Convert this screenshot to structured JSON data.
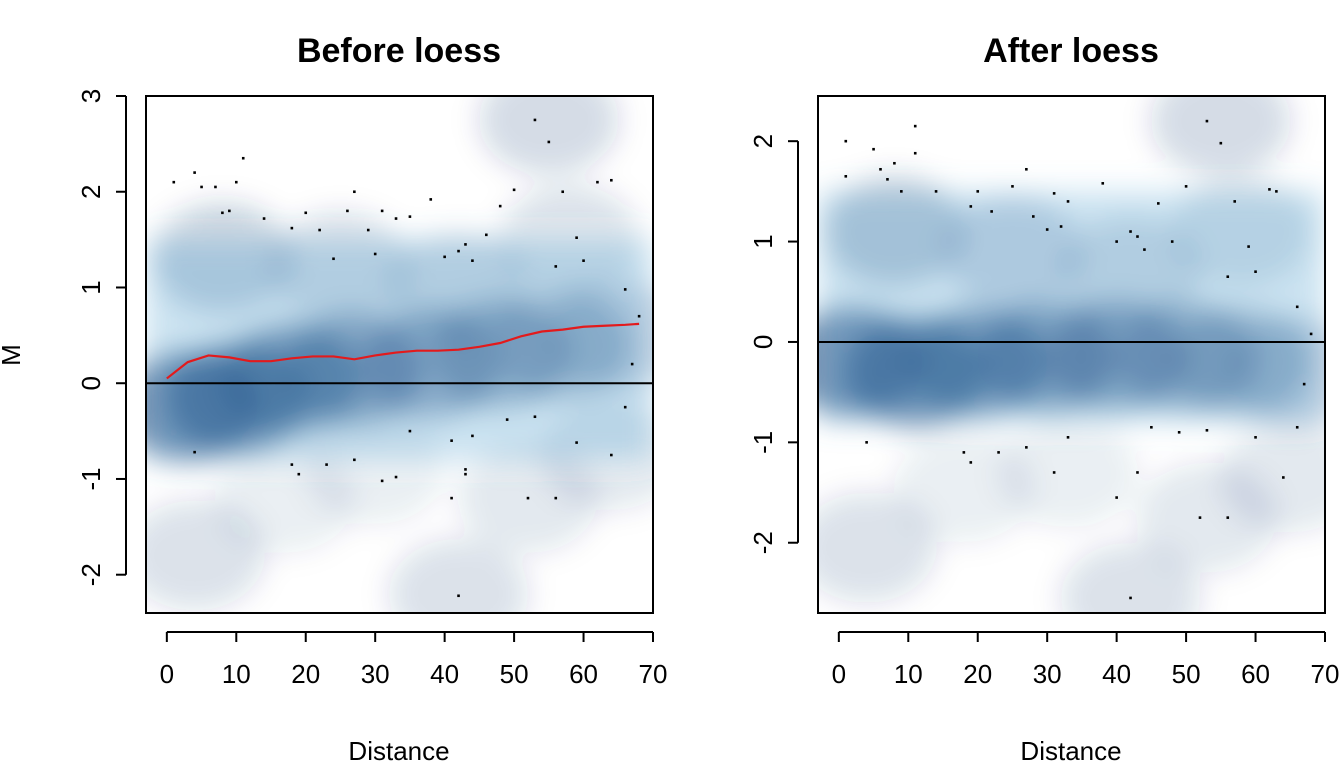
{
  "chart_data": [
    {
      "type": "scatter",
      "style": "smoothScatter density",
      "title": "Before loess",
      "xlabel": "Distance",
      "ylabel": "M",
      "xlim": [
        -3,
        70
      ],
      "ylim": [
        -2.4,
        3
      ],
      "xticks": [
        "0",
        "10",
        "20",
        "30",
        "40",
        "50",
        "60",
        "70"
      ],
      "yticks": [
        "-2",
        "-1",
        "0",
        "1",
        "2",
        "3"
      ],
      "hline": 0,
      "colors": {
        "density": "#08306b",
        "loess_curve": "#e31a1c",
        "reference_line": "#000000"
      },
      "loess_curve": {
        "x": [
          0,
          3,
          6,
          9,
          12,
          15,
          18,
          21,
          24,
          27,
          30,
          33,
          36,
          39,
          42,
          45,
          48,
          51,
          54,
          57,
          60,
          63,
          66,
          68
        ],
        "y": [
          0.05,
          0.22,
          0.29,
          0.27,
          0.23,
          0.23,
          0.26,
          0.28,
          0.28,
          0.25,
          0.29,
          0.32,
          0.34,
          0.34,
          0.35,
          0.38,
          0.42,
          0.49,
          0.54,
          0.56,
          0.59,
          0.6,
          0.61,
          0.62
        ]
      },
      "density_regions": [
        {
          "x": 3,
          "y": -0.25,
          "weight": 1.0
        },
        {
          "x": 10,
          "y": -0.15,
          "weight": 1.0
        },
        {
          "x": 18,
          "y": 0.05,
          "weight": 0.9
        },
        {
          "x": 27,
          "y": 0.15,
          "weight": 0.8
        },
        {
          "x": 38,
          "y": 0.2,
          "weight": 0.7
        },
        {
          "x": 48,
          "y": 0.3,
          "weight": 0.6
        },
        {
          "x": 57,
          "y": 0.4,
          "weight": 0.5
        },
        {
          "x": 65,
          "y": 0.5,
          "weight": 0.35
        },
        {
          "x": 8,
          "y": 1.3,
          "weight": 0.4
        },
        {
          "x": 25,
          "y": 1.2,
          "weight": 0.3
        },
        {
          "x": 42,
          "y": 1.0,
          "weight": 0.3
        },
        {
          "x": 58,
          "y": 1.5,
          "weight": 0.25
        },
        {
          "x": 55,
          "y": 2.75,
          "weight": 0.3
        },
        {
          "x": 4,
          "y": -1.8,
          "weight": 0.25
        },
        {
          "x": 42,
          "y": -2.2,
          "weight": 0.25
        },
        {
          "x": 52,
          "y": -1.2,
          "weight": 0.2
        },
        {
          "x": 17,
          "y": -1.2,
          "weight": 0.15
        },
        {
          "x": 30,
          "y": -0.9,
          "weight": 0.15
        },
        {
          "x": 64,
          "y": -0.75,
          "weight": 0.2
        }
      ],
      "outliers": {
        "x": [
          1,
          4,
          5,
          7,
          8,
          9,
          10,
          11,
          14,
          18,
          20,
          22,
          24,
          26,
          27,
          29,
          30,
          31,
          33,
          35,
          38,
          40,
          42,
          43,
          44,
          46,
          48,
          50,
          53,
          55,
          57,
          59,
          60,
          62,
          64,
          66,
          68,
          56,
          41,
          43,
          44,
          49,
          53,
          4,
          42,
          18,
          19,
          23,
          27,
          31,
          33,
          35,
          41,
          43,
          52,
          56,
          59,
          64,
          66,
          67
        ],
        "y": [
          2.1,
          2.2,
          2.05,
          2.05,
          1.78,
          1.8,
          2.1,
          2.35,
          1.72,
          1.62,
          1.78,
          1.6,
          1.3,
          1.8,
          2.0,
          1.6,
          1.35,
          1.8,
          1.72,
          1.74,
          1.92,
          1.32,
          1.38,
          1.45,
          1.28,
          1.55,
          1.85,
          2.02,
          2.75,
          2.52,
          2.0,
          1.52,
          1.28,
          2.1,
          2.12,
          0.98,
          0.7,
          1.22,
          -0.6,
          -0.9,
          -0.55,
          -0.38,
          -0.35,
          -0.72,
          -2.22,
          -0.85,
          -0.95,
          -0.85,
          -0.8,
          -1.02,
          -0.98,
          -0.5,
          -1.2,
          -0.95,
          -1.2,
          -1.2,
          -0.62,
          -0.75,
          -0.25,
          0.2
        ]
      }
    },
    {
      "type": "scatter",
      "style": "smoothScatter density",
      "title": "After loess",
      "xlabel": "Distance",
      "ylabel": "",
      "xlim": [
        -3,
        70
      ],
      "ylim": [
        -2.7,
        2.45
      ],
      "xticks": [
        "0",
        "10",
        "20",
        "30",
        "40",
        "50",
        "60",
        "70"
      ],
      "yticks": [
        "-2",
        "-1",
        "0",
        "1",
        "2"
      ],
      "hline": 0,
      "colors": {
        "density": "#08306b",
        "reference_line": "#000000"
      },
      "density_regions": [
        {
          "x": 2,
          "y": -0.2,
          "weight": 1.0
        },
        {
          "x": 11,
          "y": -0.3,
          "weight": 1.0
        },
        {
          "x": 20,
          "y": -0.2,
          "weight": 0.9
        },
        {
          "x": 30,
          "y": -0.15,
          "weight": 0.85
        },
        {
          "x": 40,
          "y": -0.15,
          "weight": 0.75
        },
        {
          "x": 50,
          "y": -0.15,
          "weight": 0.65
        },
        {
          "x": 58,
          "y": -0.2,
          "weight": 0.5
        },
        {
          "x": 66,
          "y": -0.3,
          "weight": 0.35
        },
        {
          "x": 8,
          "y": 1.1,
          "weight": 0.45
        },
        {
          "x": 25,
          "y": 0.9,
          "weight": 0.35
        },
        {
          "x": 42,
          "y": 0.7,
          "weight": 0.3
        },
        {
          "x": 58,
          "y": 1.1,
          "weight": 0.25
        },
        {
          "x": 55,
          "y": 2.2,
          "weight": 0.3
        },
        {
          "x": 4,
          "y": -2.05,
          "weight": 0.25
        },
        {
          "x": 42,
          "y": -2.55,
          "weight": 0.25
        },
        {
          "x": 53,
          "y": -1.75,
          "weight": 0.2
        },
        {
          "x": 18,
          "y": -1.45,
          "weight": 0.15
        },
        {
          "x": 33,
          "y": -1.3,
          "weight": 0.15
        },
        {
          "x": 65,
          "y": -1.35,
          "weight": 0.2
        }
      ],
      "outliers": {
        "x": [
          1,
          1,
          5,
          6,
          7,
          8,
          9,
          11,
          11,
          14,
          19,
          20,
          22,
          25,
          27,
          28,
          30,
          31,
          32,
          33,
          38,
          40,
          42,
          43,
          44,
          46,
          48,
          50,
          53,
          55,
          57,
          59,
          60,
          62,
          63,
          66,
          68,
          56,
          4,
          42,
          18,
          19,
          23,
          27,
          31,
          33,
          40,
          43,
          52,
          56,
          60,
          64,
          66,
          67,
          45,
          49,
          53
        ],
        "y": [
          2.0,
          1.65,
          1.92,
          1.72,
          1.62,
          1.78,
          1.5,
          2.15,
          1.88,
          1.5,
          1.35,
          1.5,
          1.3,
          1.55,
          1.72,
          1.25,
          1.12,
          1.48,
          1.15,
          1.4,
          1.58,
          1.0,
          1.1,
          1.05,
          0.92,
          1.38,
          1.0,
          1.55,
          2.2,
          1.98,
          1.4,
          0.95,
          0.7,
          1.52,
          1.5,
          0.35,
          0.08,
          0.65,
          -1.0,
          -2.55,
          -1.1,
          -1.2,
          -1.1,
          -1.05,
          -1.3,
          -0.95,
          -1.55,
          -1.3,
          -1.75,
          -1.75,
          -0.95,
          -1.35,
          -0.85,
          -0.42,
          -0.85,
          -0.9,
          -0.88
        ]
      }
    }
  ]
}
